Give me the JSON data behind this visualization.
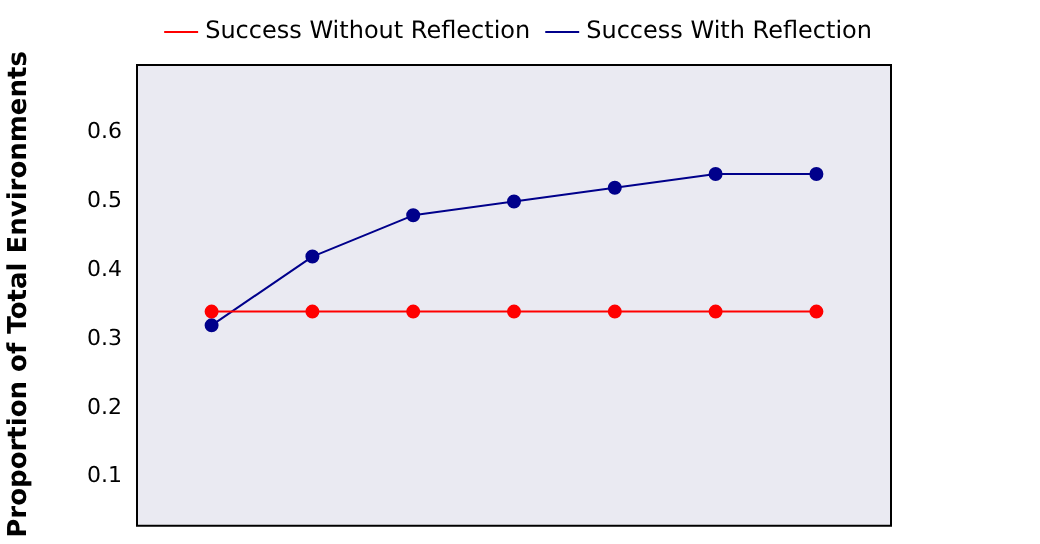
{
  "chart_data": {
    "type": "line",
    "ylabel": "Proportion of Total Environments",
    "categories": [
      null,
      null,
      null,
      null,
      null,
      null,
      null
    ],
    "series": [
      {
        "name": "Success Without Reflection",
        "color": "#ff0000",
        "values": [
          0.34,
          0.34,
          0.34,
          0.34,
          0.34,
          0.34,
          0.34
        ]
      },
      {
        "name": "Success With Reflection",
        "color": "#00008b",
        "values": [
          0.32,
          0.42,
          0.48,
          0.5,
          0.52,
          0.54,
          0.54
        ]
      }
    ],
    "ylim": [
      0.03,
      0.7
    ],
    "yticks": [
      0.1,
      0.2,
      0.3,
      0.4,
      0.5,
      0.6
    ],
    "grid": false,
    "legend": "top right",
    "marker": "circle",
    "line_style": "solid",
    "tick_labels": "y"
  }
}
